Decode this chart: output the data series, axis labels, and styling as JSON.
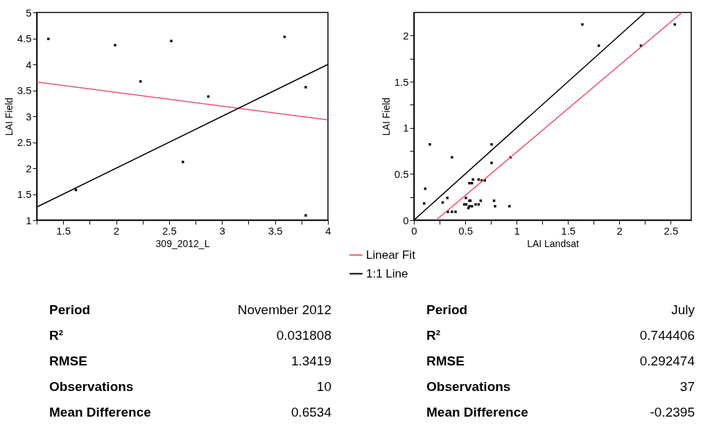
{
  "chart_data": [
    {
      "type": "scatter",
      "xlabel": "309_2012_L",
      "ylabel": "LAI Field",
      "xlim": [
        1.25,
        4
      ],
      "ylim": [
        1,
        5
      ],
      "xticks": [
        {
          "value": 1.25,
          "label": null
        },
        1.5,
        {
          "value": 1.75,
          "label": null
        },
        2,
        {
          "value": 2.25,
          "label": null
        },
        2.5,
        {
          "value": 2.75,
          "label": null
        },
        3,
        {
          "value": 3.25,
          "label": null
        },
        3.5,
        {
          "value": 3.75,
          "label": null
        },
        4
      ],
      "yticks": [
        1,
        1.5,
        2,
        2.5,
        3,
        3.5,
        4,
        4.5,
        5
      ],
      "legend": "bottom",
      "series": [
        {
          "marker": "square",
          "color": "#000000",
          "x": [
            1.36,
            1.62,
            1.99,
            2.23,
            2.52,
            2.63,
            2.87,
            3.59,
            3.79,
            3.79
          ],
          "values": [
            4.49,
            1.58,
            4.37,
            3.67,
            4.45,
            2.12,
            3.38,
            4.53,
            3.56,
            1.09
          ]
        },
        {
          "type": "line",
          "marker": "none",
          "name": "Linear Fit",
          "color": "#f0506e",
          "x": [
            1.25,
            4
          ],
          "values": [
            3.66,
            2.93
          ]
        },
        {
          "type": "line",
          "marker": "none",
          "name": "1:1 Line",
          "color": "#000000",
          "x": [
            1.25,
            4
          ],
          "values": [
            1.25,
            4
          ]
        }
      ],
      "annotations": [
        "Period",
        "November 2012",
        "R²",
        "0.031808",
        "RMSE",
        "1.3419",
        "Observations",
        "10",
        "Mean Difference",
        "0.6534"
      ]
    },
    {
      "type": "scatter",
      "xlabel": "LAI Landsat",
      "ylabel": "LAI Field",
      "xlim": [
        0,
        2.7
      ],
      "ylim": [
        0,
        2.25
      ],
      "xticks": [
        0,
        {
          "value": 0.25,
          "label": null
        },
        0.5,
        {
          "value": 0.75,
          "label": null
        },
        1,
        {
          "value": 1.25,
          "label": null
        },
        1.5,
        {
          "value": 1.75,
          "label": null
        },
        2,
        {
          "value": 2.25,
          "label": null
        },
        2.5
      ],
      "yticks": [
        0,
        {
          "value": 0.25,
          "label": null
        },
        0.5,
        {
          "value": 0.75,
          "label": null
        },
        1,
        {
          "value": 1.25,
          "label": null
        },
        1.5,
        {
          "value": 1.75,
          "label": null
        },
        2
      ],
      "series": [
        {
          "marker": "square",
          "color": "#000000",
          "x": [
            1.64,
            1.8,
            2.21,
            2.54,
            0.155,
            0.37,
            0.756,
            0.756,
            0.11,
            0.1,
            0.28,
            0.325,
            0.33,
            0.37,
            0.405,
            0.506,
            0.49,
            0.51,
            0.53,
            0.54,
            0.55,
            0.54,
            0.565,
            0.54,
            0.565,
            0.575,
            0.6,
            0.63,
            0.63,
            0.66,
            0.69,
            0.65,
            0.78,
            0.79,
            0.93,
            0.94
          ],
          "values": [
            2.12,
            1.89,
            1.89,
            2.12,
            0.82,
            0.68,
            0.82,
            0.62,
            0.34,
            0.18,
            0.19,
            0.24,
            0.09,
            0.09,
            0.09,
            0.24,
            0.17,
            0.17,
            0.13,
            0.21,
            0.21,
            0.15,
            0.15,
            0.4,
            0.4,
            0.44,
            0.17,
            0.17,
            0.44,
            0.43,
            0.43,
            0.21,
            0.21,
            0.15,
            0.15,
            0.68
          ]
        },
        {
          "type": "line",
          "marker": "none",
          "color": "#f0506e",
          "x": [
            0.216,
            2.61
          ],
          "values": [
            0,
            2.25
          ]
        },
        {
          "type": "line",
          "marker": "none",
          "color": "#000000",
          "x": [
            0,
            2.25
          ],
          "values": [
            0,
            2.25
          ]
        }
      ],
      "annotations": [
        "Period",
        "July",
        "R²",
        "0.744406",
        "RMSE",
        "0.292474",
        "Observations",
        "37",
        "Mean Difference",
        "-0.2395"
      ]
    }
  ]
}
